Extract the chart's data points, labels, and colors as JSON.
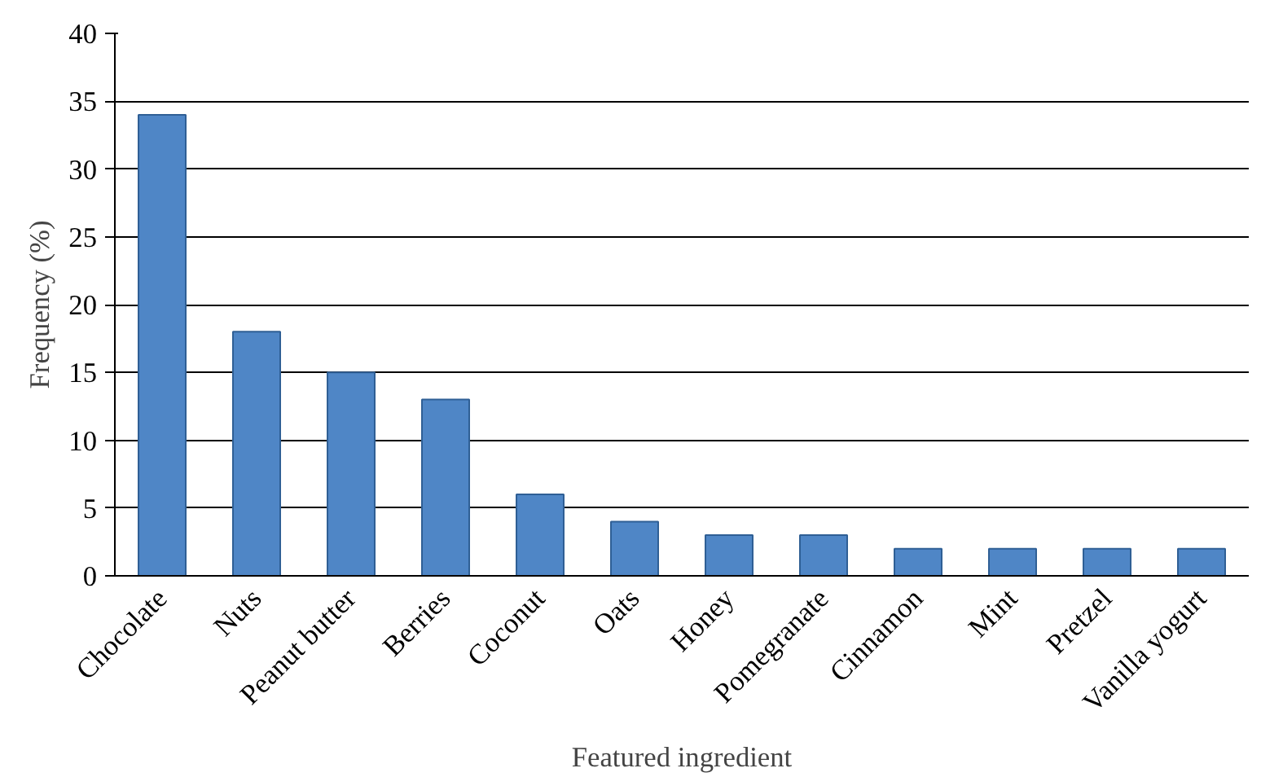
{
  "chart_data": {
    "type": "bar",
    "xlabel": "Featured ingredient",
    "ylabel": "Frequency (%)",
    "categories": [
      "Chocolate",
      "Nuts",
      "Peanut butter",
      "Berries",
      "Coconut",
      "Oats",
      "Honey",
      "Pomegranate",
      "Cinnamon",
      "Mint",
      "Pretzel",
      "Vanilla yogurt"
    ],
    "values": [
      34,
      18,
      15,
      13,
      6,
      4,
      3,
      3,
      2,
      2,
      2,
      2
    ],
    "color": "#4f86c6",
    "ylim": [
      0,
      40
    ],
    "yticks": [
      0,
      5,
      10,
      15,
      20,
      25,
      30,
      35,
      40
    ],
    "grid": "y"
  }
}
